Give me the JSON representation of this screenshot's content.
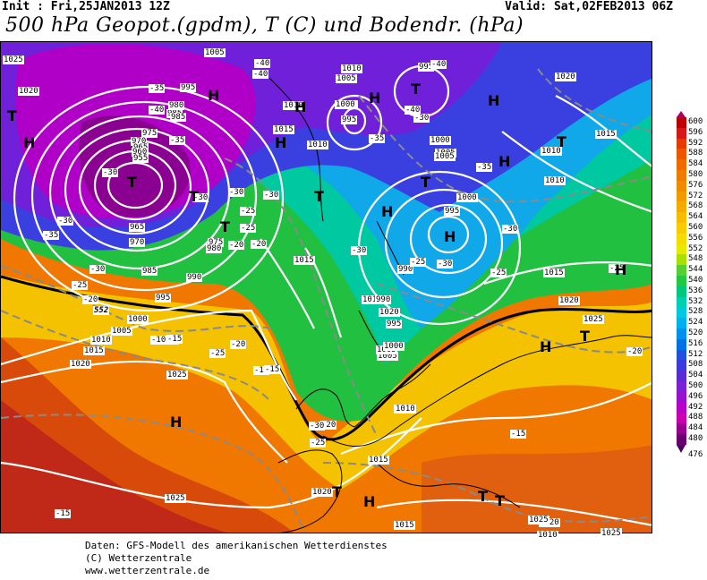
{
  "header": {
    "init": "Init : Fri,25JAN2013 12Z",
    "valid": "Valid: Sat,02FEB2013 06Z",
    "title": "500 hPa Geopot.(gpdm), T (C) und Bodendr. (hPa)"
  },
  "legend": {
    "values": [
      "600",
      "596",
      "592",
      "588",
      "584",
      "580",
      "576",
      "572",
      "568",
      "564",
      "560",
      "556",
      "552",
      "548",
      "544",
      "540",
      "536",
      "532",
      "528",
      "524",
      "520",
      "516",
      "512",
      "508",
      "504",
      "500",
      "496",
      "492",
      "488",
      "484",
      "480"
    ],
    "last_value": "476",
    "colors": [
      "#c00000",
      "#d81818",
      "#e83a00",
      "#ee5500",
      "#f06a00",
      "#f07a00",
      "#f28a00",
      "#f49a00",
      "#f5aa00",
      "#f7bb00",
      "#f8cc00",
      "#f5dc00",
      "#e8e800",
      "#aae000",
      "#55d030",
      "#22c840",
      "#00c87a",
      "#00d0b0",
      "#00c8e0",
      "#00b0f0",
      "#0090f0",
      "#0070e8",
      "#2050e0",
      "#3a3ae0",
      "#5a2ad8",
      "#7a20d8",
      "#9a10d0",
      "#b800c8",
      "#cc00b0",
      "#9a0090",
      "#6a0070"
    ],
    "top_color": "#b00060",
    "bottom_color": "#4a0060"
  },
  "map": {
    "pressure_labels": [
      "1025",
      "1005",
      "1010",
      "995",
      "1020",
      "995",
      "985",
      "980",
      "1010",
      "1000",
      "1015",
      "995",
      "1005",
      "1010",
      "1000",
      "995",
      "1005",
      "1000",
      "975",
      "970",
      "965",
      "960",
      "955",
      "985",
      "965",
      "970",
      "975",
      "980",
      "990",
      "1015",
      "985",
      "990",
      "995",
      "1000",
      "1005",
      "1010",
      "1015",
      "1020",
      "1015",
      "1020",
      "1025",
      "1025",
      "1020",
      "1015",
      "1010",
      "1005",
      "1000",
      "1005",
      "1010",
      "1015",
      "1020",
      "1020",
      "1025",
      "1025",
      "1015",
      "1010",
      "1005",
      "1000",
      "995",
      "990",
      "1015",
      "1020",
      "1025",
      "1025",
      "1010",
      "1010"
    ],
    "temp_labels": [
      "-40",
      "-40",
      "-35",
      "-40",
      "-35",
      "-30",
      "-30",
      "-30",
      "-30",
      "-25",
      "-20",
      "-40",
      "-40",
      "-35",
      "-30",
      "-30",
      "-25",
      "-30",
      "-35",
      "-30",
      "-25",
      "-25",
      "-20",
      "-15",
      "-10",
      "-15",
      "-15",
      "-20",
      "-25",
      "-30",
      "-25",
      "-20",
      "-15",
      "-15",
      "-25",
      "-20",
      "-30",
      "-35",
      "-30",
      "-25",
      "-20",
      "-15"
    ],
    "highs_lows": [
      "T",
      "H",
      "H",
      "T",
      "T",
      "T",
      "T",
      "H",
      "H",
      "H",
      "H",
      "T",
      "T",
      "H",
      "H",
      "H",
      "T",
      "H",
      "H",
      "T",
      "H",
      "T",
      "H",
      "T",
      "T"
    ],
    "contour_552": "552"
  },
  "footer": {
    "line1": "Daten: GFS-Modell des amerikanischen Wetterdienstes",
    "line2": "(C) Wetterzentrale",
    "line3": "www.wetterzentrale.de"
  }
}
